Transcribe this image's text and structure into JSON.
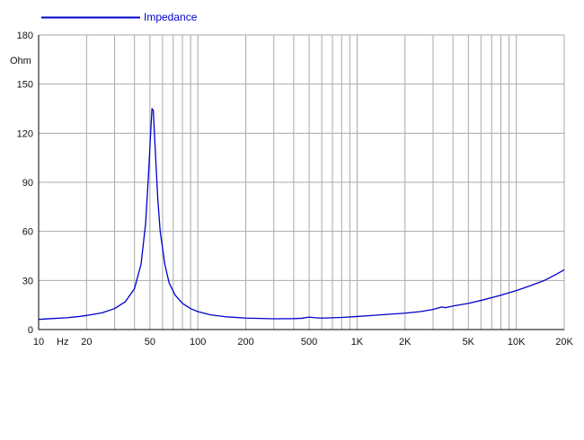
{
  "chart_data": {
    "type": "line",
    "title": "",
    "xlabel": "Hz",
    "ylabel": "Ohm",
    "x_scale": "log",
    "xlim": [
      10,
      20000
    ],
    "ylim": [
      0,
      180
    ],
    "grid": true,
    "legend_position": "top-left",
    "x_ticks": [
      {
        "value": 10,
        "label": "10"
      },
      {
        "value": 20,
        "label": "20"
      },
      {
        "value": 50,
        "label": "50"
      },
      {
        "value": 100,
        "label": "100"
      },
      {
        "value": 200,
        "label": "200"
      },
      {
        "value": 500,
        "label": "500"
      },
      {
        "value": 1000,
        "label": "1K"
      },
      {
        "value": 2000,
        "label": "2K"
      },
      {
        "value": 5000,
        "label": "5K"
      },
      {
        "value": 10000,
        "label": "10K"
      },
      {
        "value": 20000,
        "label": "20K"
      }
    ],
    "y_ticks": [
      0,
      30,
      60,
      90,
      120,
      150,
      180
    ],
    "series": [
      {
        "name": "Impedance",
        "color": "#0000cc",
        "points": [
          [
            10,
            6.2
          ],
          [
            12,
            6.7
          ],
          [
            15,
            7.2
          ],
          [
            18,
            8.0
          ],
          [
            20,
            8.6
          ],
          [
            25,
            10.2
          ],
          [
            30,
            12.8
          ],
          [
            35,
            17.0
          ],
          [
            40,
            25.0
          ],
          [
            44,
            40.0
          ],
          [
            47,
            65.0
          ],
          [
            49,
            95.0
          ],
          [
            50.5,
            120.0
          ],
          [
            51.5,
            135.0
          ],
          [
            52.5,
            134.0
          ],
          [
            54,
            110.0
          ],
          [
            56,
            80.0
          ],
          [
            58,
            60.0
          ],
          [
            62,
            40.0
          ],
          [
            66,
            28.5
          ],
          [
            72,
            21.0
          ],
          [
            80,
            16.0
          ],
          [
            90,
            12.8
          ],
          [
            100,
            11.0
          ],
          [
            120,
            9.0
          ],
          [
            150,
            7.8
          ],
          [
            200,
            7.0
          ],
          [
            300,
            6.6
          ],
          [
            400,
            6.7
          ],
          [
            450,
            6.9
          ],
          [
            500,
            7.6
          ],
          [
            550,
            7.2
          ],
          [
            600,
            7.0
          ],
          [
            700,
            7.2
          ],
          [
            800,
            7.4
          ],
          [
            1000,
            8.0
          ],
          [
            1200,
            8.5
          ],
          [
            1500,
            9.2
          ],
          [
            2000,
            10.0
          ],
          [
            2500,
            11.0
          ],
          [
            3000,
            12.3
          ],
          [
            3400,
            13.8
          ],
          [
            3600,
            13.4
          ],
          [
            4000,
            14.4
          ],
          [
            5000,
            16.0
          ],
          [
            6000,
            17.8
          ],
          [
            7000,
            19.5
          ],
          [
            8000,
            21.0
          ],
          [
            10000,
            23.8
          ],
          [
            12000,
            26.5
          ],
          [
            15000,
            30.0
          ],
          [
            18000,
            34.0
          ],
          [
            20000,
            36.5
          ]
        ]
      }
    ]
  }
}
